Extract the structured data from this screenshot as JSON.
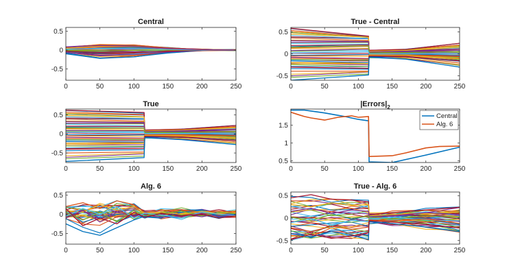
{
  "palette": [
    "#0072BD",
    "#D95319",
    "#EDB120",
    "#7E2F8E",
    "#77AC30",
    "#4DBEEE",
    "#A2142F"
  ],
  "chart_data": [
    {
      "id": "central",
      "type": "line",
      "title": "Central",
      "xlim": [
        0,
        250
      ],
      "ylim": [
        -0.8,
        0.6
      ],
      "xticks": [
        0,
        50,
        100,
        150,
        200,
        250
      ],
      "xtick_labels": [
        "0",
        "50",
        "100",
        "150",
        "200",
        "250"
      ],
      "yticks": [
        -0.5,
        0,
        0.5
      ],
      "ytick_labels": [
        "-0.5",
        "0",
        "0.5"
      ],
      "series": [
        {
          "color": "#0072BD",
          "x": [
            0,
            50,
            100,
            150,
            200,
            250
          ],
          "y": [
            -0.1,
            -0.22,
            -0.18,
            -0.08,
            -0.01,
            0.0
          ]
        },
        {
          "color": "#7E2F8E",
          "x": [
            0,
            50,
            100,
            150,
            200,
            250
          ],
          "y": [
            -0.06,
            -0.14,
            -0.12,
            -0.05,
            -0.01,
            0.0
          ]
        },
        {
          "color": "#A2142F",
          "x": [
            0,
            50,
            100,
            150,
            200,
            250
          ],
          "y": [
            -0.03,
            -0.07,
            -0.07,
            -0.03,
            0.0,
            0.0
          ]
        },
        {
          "color": "#77AC30",
          "x": [
            0,
            50,
            100,
            150,
            200,
            250
          ],
          "y": [
            0.0,
            -0.02,
            -0.01,
            0.0,
            0.0,
            0.0
          ]
        },
        {
          "color": "#4DBEEE",
          "x": [
            0,
            50,
            100,
            150,
            200,
            250
          ],
          "y": [
            0.02,
            0.04,
            0.04,
            0.02,
            0.0,
            0.0
          ]
        },
        {
          "color": "#EDB120",
          "x": [
            0,
            50,
            100,
            150,
            200,
            250
          ],
          "y": [
            0.05,
            0.1,
            0.09,
            0.04,
            0.01,
            0.0
          ]
        },
        {
          "color": "#D95319",
          "x": [
            0,
            50,
            100,
            150,
            200,
            250
          ],
          "y": [
            0.07,
            0.14,
            0.13,
            0.06,
            0.01,
            0.0
          ]
        },
        {
          "color": "#7E2F8E",
          "x": [
            0,
            50,
            100,
            150,
            200,
            250
          ],
          "y": [
            0.08,
            0.12,
            0.1,
            0.04,
            0.01,
            0.0
          ]
        }
      ]
    },
    {
      "id": "true-minus-central",
      "type": "line",
      "title": "True - Central",
      "xlim": [
        0,
        250
      ],
      "ylim": [
        -0.6,
        0.6
      ],
      "xticks": [
        0,
        50,
        100,
        150,
        200,
        250
      ],
      "xtick_labels": [
        "0",
        "50",
        "100",
        "150",
        "200",
        "250"
      ],
      "yticks": [
        -0.5,
        0,
        0.5
      ],
      "ytick_labels": [
        "-0.5",
        "0",
        "0.5"
      ],
      "series": [
        {
          "color": "#A2142F",
          "x": [
            0,
            115,
            116,
            170,
            250
          ],
          "y": [
            0.58,
            0.4,
            0.08,
            0.1,
            0.24
          ]
        },
        {
          "color": "#EDB120",
          "x": [
            0,
            115,
            116,
            170,
            250
          ],
          "y": [
            0.45,
            0.38,
            0.06,
            0.08,
            0.15
          ]
        },
        {
          "color": "#7E2F8E",
          "x": [
            0,
            115,
            116,
            170,
            250
          ],
          "y": [
            0.3,
            0.28,
            0.04,
            0.06,
            0.1
          ]
        },
        {
          "color": "#77AC30",
          "x": [
            0,
            115,
            116,
            170,
            250
          ],
          "y": [
            0.15,
            0.18,
            0.02,
            0.03,
            0.05
          ]
        },
        {
          "color": "#4DBEEE",
          "x": [
            0,
            115,
            116,
            170,
            250
          ],
          "y": [
            0.02,
            0.05,
            0.0,
            0.0,
            0.01
          ]
        },
        {
          "color": "#D95319",
          "x": [
            0,
            115,
            116,
            170,
            250
          ],
          "y": [
            -0.1,
            -0.12,
            -0.02,
            -0.03,
            -0.06
          ]
        },
        {
          "color": "#EDB120",
          "x": [
            0,
            115,
            116,
            170,
            250
          ],
          "y": [
            -0.2,
            -0.22,
            -0.03,
            -0.04,
            -0.1
          ]
        },
        {
          "color": "#A2142F",
          "x": [
            0,
            115,
            116,
            170,
            250
          ],
          "y": [
            -0.3,
            -0.33,
            -0.05,
            -0.06,
            -0.16
          ]
        },
        {
          "color": "#0072BD",
          "x": [
            0,
            115,
            116,
            170,
            250
          ],
          "y": [
            -0.6,
            -0.48,
            -0.08,
            -0.12,
            -0.3
          ]
        }
      ]
    },
    {
      "id": "true",
      "type": "line",
      "title": "True",
      "xlim": [
        0,
        250
      ],
      "ylim": [
        -0.75,
        0.65
      ],
      "xticks": [
        0,
        50,
        100,
        150,
        200,
        250
      ],
      "xtick_labels": [
        "0",
        "50",
        "100",
        "150",
        "200",
        "250"
      ],
      "yticks": [
        -0.5,
        0,
        0.5
      ],
      "ytick_labels": [
        "-0.5",
        "0",
        "0.5"
      ],
      "series": [
        {
          "color": "#A2142F",
          "x": [
            0,
            115,
            116,
            170,
            250
          ],
          "y": [
            0.62,
            0.56,
            0.1,
            0.12,
            0.22
          ]
        },
        {
          "color": "#EDB120",
          "x": [
            0,
            115,
            116,
            170,
            250
          ],
          "y": [
            0.48,
            0.44,
            0.08,
            0.1,
            0.16
          ]
        },
        {
          "color": "#7E2F8E",
          "x": [
            0,
            115,
            116,
            170,
            250
          ],
          "y": [
            0.32,
            0.3,
            0.06,
            0.08,
            0.12
          ]
        },
        {
          "color": "#77AC30",
          "x": [
            0,
            115,
            116,
            170,
            250
          ],
          "y": [
            0.16,
            0.15,
            0.03,
            0.04,
            0.06
          ]
        },
        {
          "color": "#4DBEEE",
          "x": [
            0,
            115,
            116,
            170,
            250
          ],
          "y": [
            0.04,
            0.03,
            0.01,
            0.01,
            0.02
          ]
        },
        {
          "color": "#D95319",
          "x": [
            0,
            115,
            116,
            170,
            250
          ],
          "y": [
            -0.12,
            -0.12,
            -0.02,
            -0.03,
            -0.05
          ]
        },
        {
          "color": "#EDB120",
          "x": [
            0,
            115,
            116,
            170,
            250
          ],
          "y": [
            -0.25,
            -0.24,
            -0.04,
            -0.05,
            -0.1
          ]
        },
        {
          "color": "#A2142F",
          "x": [
            0,
            115,
            116,
            170,
            250
          ],
          "y": [
            -0.4,
            -0.38,
            -0.06,
            -0.08,
            -0.17
          ]
        },
        {
          "color": "#0072BD",
          "x": [
            0,
            115,
            116,
            170,
            250
          ],
          "y": [
            -0.72,
            -0.62,
            -0.1,
            -0.15,
            -0.28
          ]
        }
      ]
    },
    {
      "id": "errors",
      "type": "line",
      "title": "|Errors|",
      "title_sub": "2",
      "xlim": [
        0,
        250
      ],
      "ylim": [
        0.45,
        1.95
      ],
      "xticks": [
        0,
        50,
        100,
        150,
        200,
        250
      ],
      "xtick_labels": [
        "0",
        "50",
        "100",
        "150",
        "200",
        "250"
      ],
      "yticks": [
        0.5,
        1,
        1.5
      ],
      "ytick_labels": [
        "0.5",
        "1",
        "1.5"
      ],
      "legend": {
        "position": "top-right"
      },
      "series": [
        {
          "name": "Central",
          "color": "#0072BD",
          "x": [
            0,
            20,
            50,
            80,
            100,
            115,
            116,
            150,
            200,
            250
          ],
          "y": [
            1.92,
            1.92,
            1.84,
            1.74,
            1.66,
            1.62,
            0.47,
            0.45,
            0.66,
            0.88
          ]
        },
        {
          "name": "Alg. 6",
          "color": "#D95319",
          "x": [
            0,
            10,
            20,
            30,
            50,
            70,
            90,
            100,
            115,
            116,
            150,
            170,
            200,
            220,
            250
          ],
          "y": [
            1.86,
            1.8,
            1.74,
            1.7,
            1.64,
            1.72,
            1.76,
            1.72,
            1.74,
            0.62,
            0.64,
            0.72,
            0.86,
            0.9,
            0.91
          ]
        }
      ]
    },
    {
      "id": "alg6",
      "type": "line",
      "title": "Alg. 6",
      "xlim": [
        0,
        250
      ],
      "ylim": [
        -0.78,
        0.58
      ],
      "xticks": [
        0,
        50,
        100,
        150,
        200,
        250
      ],
      "xtick_labels": [
        "0",
        "50",
        "100",
        "150",
        "200",
        "250"
      ],
      "yticks": [
        -0.5,
        0,
        0.5
      ],
      "ytick_labels": [
        "-0.5",
        "0",
        "0.5"
      ],
      "series": [
        {
          "color": "#0072BD",
          "x": [
            0,
            25,
            50,
            75,
            100,
            116,
            140,
            170,
            200,
            225,
            250
          ],
          "y": [
            -0.25,
            -0.45,
            -0.55,
            -0.35,
            -0.15,
            -0.05,
            -0.1,
            0.05,
            0.1,
            -0.05,
            0.0
          ]
        },
        {
          "color": "#D95319",
          "x": [
            0,
            25,
            50,
            75,
            100,
            116,
            140,
            170,
            200,
            225,
            250
          ],
          "y": [
            0.2,
            0.3,
            0.15,
            0.35,
            0.25,
            0.05,
            0.1,
            0.12,
            0.05,
            0.08,
            0.06
          ]
        },
        {
          "color": "#EDB120",
          "x": [
            0,
            25,
            50,
            75,
            100,
            116,
            140,
            170,
            200,
            225,
            250
          ],
          "y": [
            0.1,
            0.05,
            0.25,
            0.1,
            0.2,
            0.02,
            0.06,
            0.0,
            0.08,
            0.02,
            0.04
          ]
        },
        {
          "color": "#7E2F8E",
          "x": [
            0,
            25,
            50,
            75,
            100,
            116,
            140,
            170,
            200,
            225,
            250
          ],
          "y": [
            -0.1,
            0.1,
            -0.2,
            0.05,
            -0.05,
            0.0,
            -0.08,
            -0.05,
            0.02,
            -0.06,
            -0.02
          ]
        },
        {
          "color": "#77AC30",
          "x": [
            0,
            25,
            50,
            75,
            100,
            116,
            140,
            170,
            200,
            225,
            250
          ],
          "y": [
            0.05,
            -0.15,
            0.05,
            -0.2,
            0.1,
            -0.03,
            0.02,
            0.08,
            -0.04,
            0.05,
            0.01
          ]
        },
        {
          "color": "#4DBEEE",
          "x": [
            0,
            25,
            50,
            75,
            100,
            116,
            140,
            170,
            200,
            225,
            250
          ],
          "y": [
            -0.05,
            0.15,
            0.0,
            0.2,
            -0.1,
            0.03,
            -0.02,
            -0.1,
            0.06,
            0.0,
            -0.03
          ]
        },
        {
          "color": "#A2142F",
          "x": [
            0,
            25,
            50,
            75,
            100,
            116,
            140,
            170,
            200,
            225,
            250
          ],
          "y": [
            0.15,
            -0.3,
            -0.1,
            -0.25,
            0.05,
            -0.08,
            0.02,
            -0.04,
            0.0,
            -0.1,
            -0.04
          ]
        }
      ]
    },
    {
      "id": "true-minus-alg6",
      "type": "line",
      "title": "True - Alg. 6",
      "xlim": [
        0,
        250
      ],
      "ylim": [
        -0.58,
        0.58
      ],
      "xticks": [
        0,
        50,
        100,
        150,
        200,
        250
      ],
      "xtick_labels": [
        "0",
        "50",
        "100",
        "150",
        "200",
        "250"
      ],
      "yticks": [
        -0.5,
        0,
        0.5
      ],
      "ytick_labels": [
        "-0.5",
        "0",
        "0.5"
      ],
      "series": [
        {
          "color": "#A2142F",
          "x": [
            0,
            30,
            60,
            90,
            115,
            116,
            150,
            200,
            250
          ],
          "y": [
            0.45,
            0.52,
            0.42,
            0.4,
            0.36,
            0.08,
            0.12,
            0.18,
            0.24
          ]
        },
        {
          "color": "#EDB120",
          "x": [
            0,
            30,
            60,
            90,
            115,
            116,
            150,
            200,
            250
          ],
          "y": [
            0.3,
            0.25,
            0.34,
            0.28,
            0.3,
            0.05,
            0.08,
            0.1,
            0.14
          ]
        },
        {
          "color": "#7E2F8E",
          "x": [
            0,
            30,
            60,
            90,
            115,
            116,
            150,
            200,
            250
          ],
          "y": [
            0.15,
            0.22,
            0.1,
            0.18,
            0.15,
            0.03,
            0.05,
            0.12,
            0.08
          ]
        },
        {
          "color": "#77AC30",
          "x": [
            0,
            30,
            60,
            90,
            115,
            116,
            150,
            200,
            250
          ],
          "y": [
            0.02,
            -0.05,
            0.08,
            0.0,
            0.04,
            0.0,
            -0.02,
            0.05,
            0.02
          ]
        },
        {
          "color": "#4DBEEE",
          "x": [
            0,
            30,
            60,
            90,
            115,
            116,
            150,
            200,
            250
          ],
          "y": [
            -0.1,
            -0.02,
            -0.15,
            -0.05,
            -0.08,
            -0.02,
            0.02,
            -0.04,
            -0.06
          ]
        },
        {
          "color": "#D95319",
          "x": [
            0,
            30,
            60,
            90,
            115,
            116,
            150,
            200,
            250
          ],
          "y": [
            -0.22,
            -0.3,
            -0.18,
            -0.25,
            -0.2,
            -0.04,
            -0.06,
            -0.02,
            -0.12
          ]
        },
        {
          "color": "#0072BD",
          "x": [
            0,
            30,
            60,
            90,
            115,
            116,
            150,
            200,
            250
          ],
          "y": [
            -0.35,
            -0.42,
            -0.3,
            -0.38,
            -0.48,
            -0.08,
            -0.12,
            -0.2,
            -0.3
          ]
        },
        {
          "color": "#A2142F",
          "x": [
            0,
            30,
            60,
            90,
            115,
            116,
            150,
            200,
            250
          ],
          "y": [
            -0.48,
            -0.36,
            -0.45,
            -0.4,
            -0.32,
            -0.06,
            -0.09,
            -0.14,
            -0.22
          ]
        }
      ]
    }
  ]
}
